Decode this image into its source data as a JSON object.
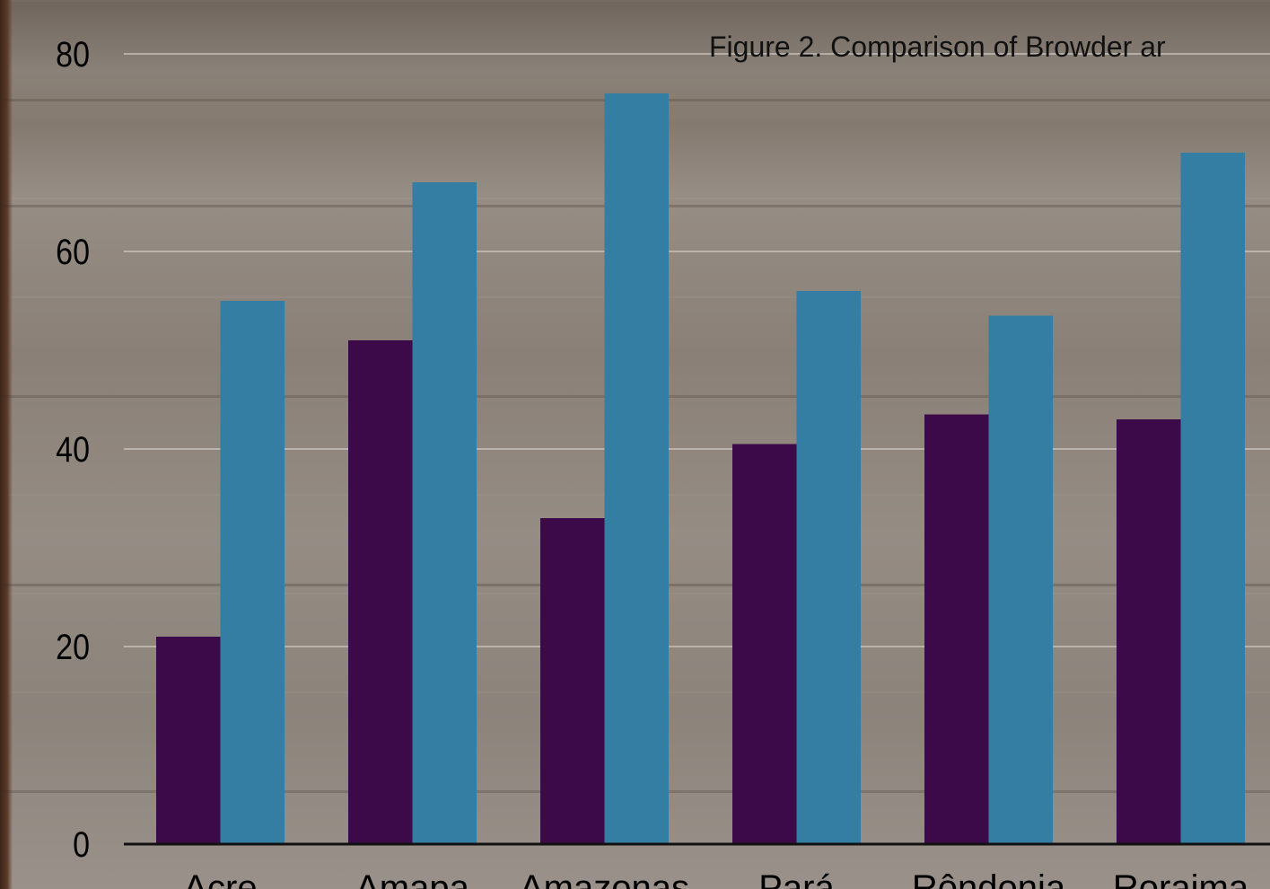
{
  "chart_data": {
    "type": "bar",
    "title": "Figure 2. Comparison of Browder ar",
    "categories": [
      "Acre",
      "Amapa",
      "Amazonas",
      "Pará",
      "Rôndonia",
      "Roraima"
    ],
    "series": [
      {
        "values": [
          21,
          51,
          33,
          40.5,
          43.5,
          43
        ],
        "color": "#3c0a49"
      },
      {
        "values": [
          55,
          67,
          76,
          56,
          53.5,
          70
        ],
        "color": "#337ea2"
      }
    ],
    "xlabel": "",
    "ylabel": "",
    "ylim": [
      0,
      80
    ],
    "yticks": [
      0,
      20,
      40,
      60,
      80
    ],
    "grid": true,
    "legend": "none"
  }
}
